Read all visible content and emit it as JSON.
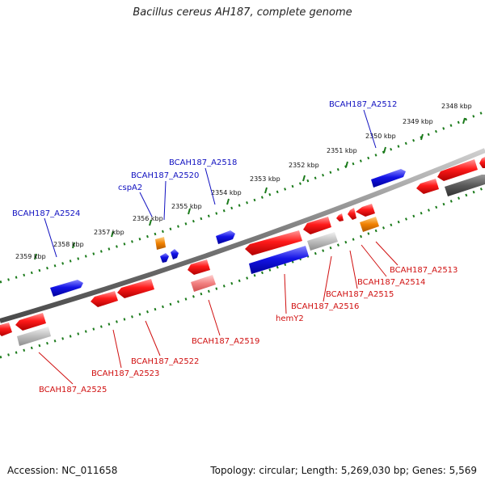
{
  "title": "Bacillus cereus AH187, complete genome",
  "footer": {
    "accession": "Accession: NC_011658",
    "topology": "Topology: circular; Length: 5,269,030 bp; Genes: 5,569"
  },
  "colors": {
    "forward_gene_label": "#1010c0",
    "reverse_gene_label": "#d01010",
    "backbone": "#808080",
    "tick": "#1a7a1a",
    "forward_gene": "#1414e6",
    "reverse_gene": "#e61414",
    "pseudogene": "#aaaaaa",
    "rna": "#f08000"
  },
  "scale_labels": [
    "2348 kbp",
    "2349 kbp",
    "2350 kbp",
    "2351 kbp",
    "2352 kbp",
    "2353 kbp",
    "2354 kbp",
    "2355 kbp",
    "2356 kbp",
    "2357 kbp",
    "2358 kbp",
    "2359 kbp"
  ],
  "forward_gene_labels": [
    "BCAH187_A2512",
    "BCAH187_A2518",
    "BCAH187_A2520",
    "cspA2",
    "BCAH187_A2524"
  ],
  "reverse_gene_labels": [
    "BCAH187_A2513",
    "BCAH187_A2514",
    "BCAH187_A2515",
    "BCAH187_A2516",
    "hemY2",
    "BCAH187_A2519",
    "BCAH187_A2522",
    "BCAH187_A2523",
    "BCAH187_A2525"
  ]
}
